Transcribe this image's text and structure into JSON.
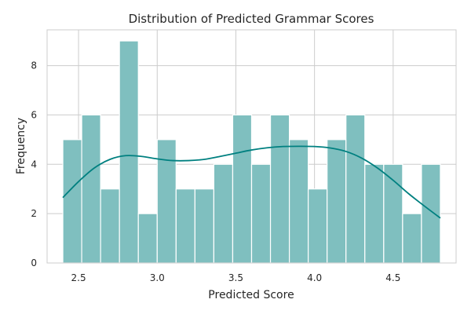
{
  "chart_data": {
    "type": "bar",
    "title": "Distribution of Predicted Grammar Scores",
    "xlabel": "Predicted Score",
    "ylabel": "Frequency",
    "xlim": [
      2.3,
      4.9
    ],
    "ylim": [
      0,
      9.45
    ],
    "x_ticks": [
      2.5,
      3.0,
      3.5,
      4.0,
      4.5
    ],
    "x_tick_labels": [
      "2.5",
      "3.0",
      "3.5",
      "4.0",
      "4.5"
    ],
    "y_ticks": [
      0,
      2,
      4,
      6,
      8
    ],
    "y_tick_labels": [
      "0",
      "2",
      "4",
      "6",
      "8"
    ],
    "grid": true,
    "bins": [
      {
        "x0": 2.4,
        "x1": 2.52,
        "count": 5
      },
      {
        "x0": 2.52,
        "x1": 2.64,
        "count": 6
      },
      {
        "x0": 2.64,
        "x1": 2.76,
        "count": 3
      },
      {
        "x0": 2.76,
        "x1": 2.88,
        "count": 9
      },
      {
        "x0": 2.88,
        "x1": 3.0,
        "count": 2
      },
      {
        "x0": 3.0,
        "x1": 3.12,
        "count": 5
      },
      {
        "x0": 3.12,
        "x1": 3.24,
        "count": 3
      },
      {
        "x0": 3.24,
        "x1": 3.36,
        "count": 3
      },
      {
        "x0": 3.36,
        "x1": 3.48,
        "count": 4
      },
      {
        "x0": 3.48,
        "x1": 3.6,
        "count": 6
      },
      {
        "x0": 3.6,
        "x1": 3.72,
        "count": 4
      },
      {
        "x0": 3.72,
        "x1": 3.84,
        "count": 6
      },
      {
        "x0": 3.84,
        "x1": 3.96,
        "count": 5
      },
      {
        "x0": 3.96,
        "x1": 4.08,
        "count": 3
      },
      {
        "x0": 4.08,
        "x1": 4.2,
        "count": 5
      },
      {
        "x0": 4.2,
        "x1": 4.32,
        "count": 6
      },
      {
        "x0": 4.32,
        "x1": 4.44,
        "count": 4
      },
      {
        "x0": 4.44,
        "x1": 4.56,
        "count": 4
      },
      {
        "x0": 4.56,
        "x1": 4.68,
        "count": 2
      },
      {
        "x0": 4.68,
        "x1": 4.8,
        "count": 4
      }
    ],
    "kde": {
      "x": [
        2.4,
        2.5,
        2.6,
        2.7,
        2.8,
        2.9,
        3.0,
        3.1,
        3.2,
        3.3,
        3.4,
        3.5,
        3.6,
        3.7,
        3.8,
        3.9,
        4.0,
        4.1,
        4.2,
        4.3,
        4.4,
        4.5,
        4.6,
        4.7,
        4.8
      ],
      "y": [
        2.65,
        3.3,
        3.85,
        4.2,
        4.35,
        4.32,
        4.22,
        4.15,
        4.15,
        4.2,
        4.32,
        4.45,
        4.58,
        4.67,
        4.72,
        4.73,
        4.72,
        4.66,
        4.52,
        4.25,
        3.85,
        3.35,
        2.8,
        2.3,
        1.82
      ]
    },
    "colors": {
      "bar_fill": "#7fbfbf",
      "line": "#008080"
    }
  }
}
